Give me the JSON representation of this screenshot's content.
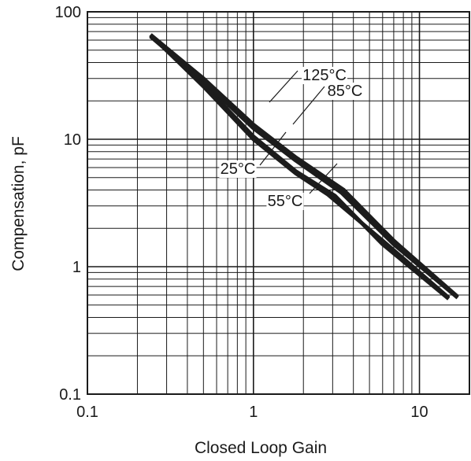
{
  "chart_data": {
    "type": "line",
    "xlabel": "Closed Loop Gain",
    "ylabel": "Compensation, pF",
    "xscale": "log",
    "yscale": "log",
    "xlim": [
      0.1,
      20
    ],
    "ylim": [
      0.1,
      100
    ],
    "grid": true,
    "x_tick_labels": [
      "0.1",
      "1",
      "10"
    ],
    "y_tick_labels": [
      "0.1",
      "1",
      "10",
      "100"
    ],
    "series": [
      {
        "name": "125°C",
        "x": [
          0.24,
          0.5,
          1,
          1.8,
          3.5,
          7,
          17
        ],
        "y": [
          66,
          30,
          13,
          7.2,
          4,
          1.6,
          0.58
        ]
      },
      {
        "name": "85°C",
        "x": [
          0.24,
          0.5,
          1,
          1.8,
          3.4,
          7,
          17
        ],
        "y": [
          64,
          28.5,
          12.2,
          6.8,
          3.8,
          1.5,
          0.57
        ]
      },
      {
        "name": "25°C",
        "x": [
          0.24,
          0.5,
          1,
          1.8,
          3.1,
          6,
          15
        ],
        "y": [
          65,
          27,
          10.5,
          5.6,
          3.6,
          1.5,
          0.56
        ]
      },
      {
        "name": "55°C",
        "x": [
          0.24,
          0.5,
          1,
          1.8,
          2.8,
          6,
          15
        ],
        "y": [
          66,
          26,
          10,
          5.4,
          3.7,
          1.6,
          0.57
        ]
      }
    ],
    "annotations": [
      "125°C",
      "85°C",
      "25°C",
      "55°C"
    ]
  }
}
